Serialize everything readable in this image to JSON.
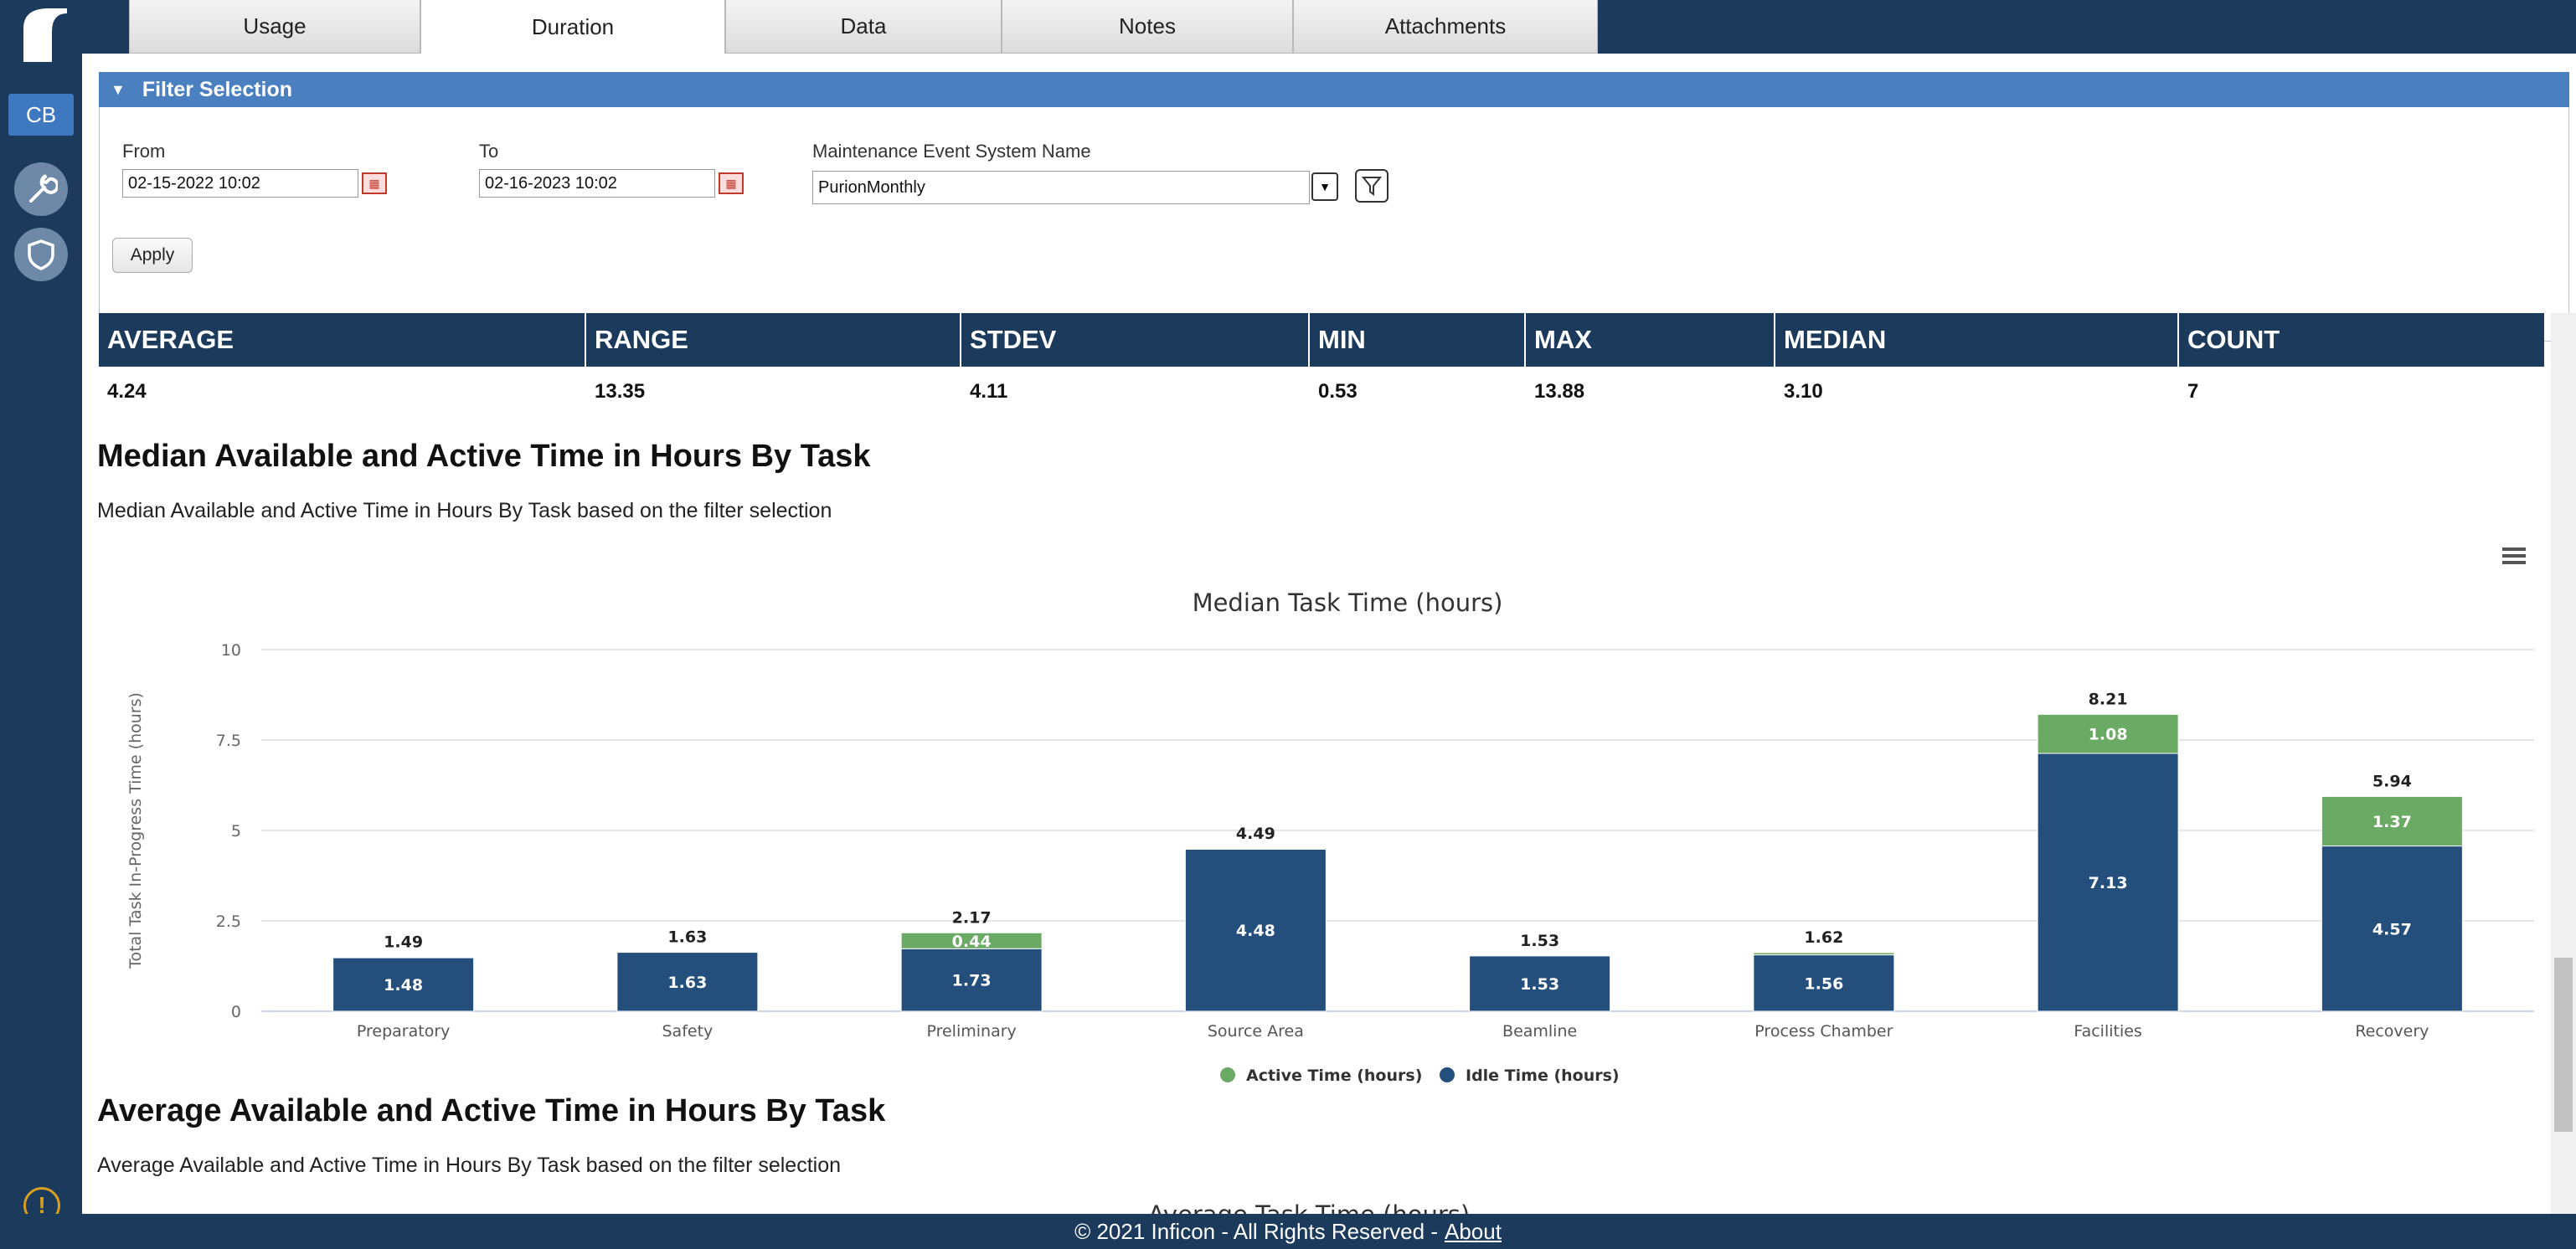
{
  "sidebar": {
    "user_initials": "CB"
  },
  "tabs": [
    {
      "label": "Usage",
      "active": false
    },
    {
      "label": "Duration",
      "active": true
    },
    {
      "label": "Data",
      "active": false
    },
    {
      "label": "Notes",
      "active": false
    },
    {
      "label": "Attachments",
      "active": false
    }
  ],
  "filter": {
    "title": "Filter Selection",
    "from_label": "From",
    "from_value": "02-15-2022 10:02",
    "to_label": "To",
    "to_value": "02-16-2023 10:02",
    "system_label": "Maintenance Event System Name",
    "system_value": "PurionMonthly",
    "apply_label": "Apply"
  },
  "stats": {
    "headers": [
      "AVERAGE",
      "RANGE",
      "STDEV",
      "MIN",
      "MAX",
      "MEDIAN",
      "COUNT"
    ],
    "values": [
      "4.24",
      "13.35",
      "4.11",
      "0.53",
      "13.88",
      "3.10",
      "7"
    ]
  },
  "median_section": {
    "heading": "Median Available and Active Time in Hours By Task",
    "description": "Median Available and Active Time in Hours By Task based on the filter selection"
  },
  "average_section": {
    "heading": "Average Available and Active Time in Hours By Task",
    "description": "Average Available and Active Time in Hours By Task based on the filter selection",
    "chart_title": "Average Task Time (hours)"
  },
  "chart_data": {
    "type": "bar",
    "stacked": true,
    "title": "Median Task Time (hours)",
    "xlabel": "",
    "ylabel": "Total Task In-Progress Time (hours)",
    "ylim": [
      0,
      10
    ],
    "yticks": [
      "0",
      "2.5",
      "5",
      "7.5",
      "10"
    ],
    "categories": [
      "Preparatory",
      "Safety",
      "Preliminary",
      "Source Area",
      "Beamline",
      "Process Chamber",
      "Facilities",
      "Recovery"
    ],
    "series": [
      {
        "name": "Active Time (hours)",
        "color": "#6aaa64",
        "values": [
          0.01,
          0,
          0.44,
          0.01,
          0,
          0.06,
          1.08,
          1.37
        ],
        "labels": [
          "",
          "",
          "0.44",
          "",
          "",
          "",
          "1.08",
          "1.37"
        ]
      },
      {
        "name": "Idle Time (hours)",
        "color": "#244f7d",
        "values": [
          1.48,
          1.63,
          1.73,
          4.48,
          1.53,
          1.56,
          7.13,
          4.57
        ],
        "labels": [
          "1.48",
          "1.63",
          "1.73",
          "4.48",
          "1.53",
          "1.56",
          "7.13",
          "4.57"
        ]
      }
    ],
    "totals": [
      "1.49",
      "1.63",
      "2.17",
      "4.49",
      "1.53",
      "1.62",
      "8.21",
      "5.94"
    ],
    "legend": "bottom-center",
    "grid": true
  },
  "footer": {
    "copyright": "© 2021 Inficon - All Rights Reserved -",
    "about_label": "About"
  }
}
